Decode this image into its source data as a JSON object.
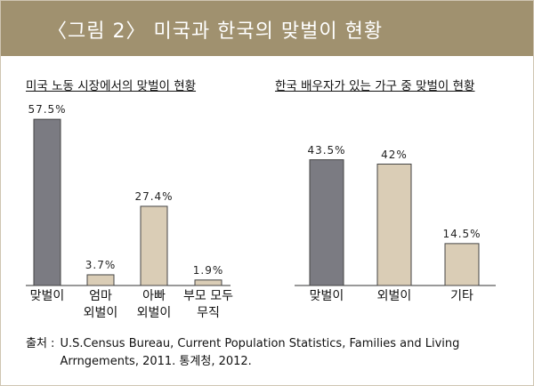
{
  "title": "〈그림 2〉 미국과 한국의 맞벌이 현황",
  "chart_data": [
    {
      "type": "bar",
      "title": "미국 노동 시장에서의 맞벌이 현황",
      "categories": [
        "맞벌이",
        "엄마\n외벌이",
        "아빠\n외벌이",
        "부모 모두\n무직"
      ],
      "values": [
        57.5,
        3.7,
        27.4,
        1.9
      ],
      "value_labels": [
        "57.5%",
        "3.7%",
        "27.4%",
        "1.9%"
      ],
      "colors": [
        "#7b7b82",
        "#dacdb6",
        "#dacdb6",
        "#dacdb6"
      ]
    },
    {
      "type": "bar",
      "title": "한국 배우자가 있는 가구 중 맞벌이 현황",
      "categories": [
        "맞벌이",
        "외벌이",
        "기타"
      ],
      "values": [
        43.5,
        42,
        14.5
      ],
      "value_labels": [
        "43.5%",
        "42%",
        "14.5%"
      ],
      "colors": [
        "#7b7b82",
        "#dacdb6",
        "#dacdb6"
      ]
    }
  ],
  "source": {
    "label": "출처 :",
    "text": "U.S.Census Bureau, Current Population Statistics, Families and Living Arrngements, 2011. 통계청, 2012."
  }
}
